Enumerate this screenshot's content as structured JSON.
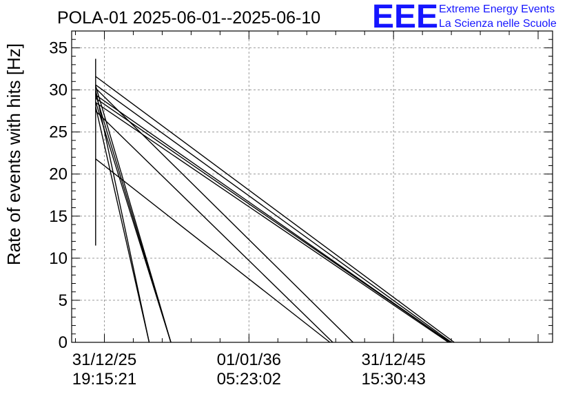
{
  "chart_data": {
    "type": "line",
    "title": "POLA-01 2025-06-01--2025-06-10",
    "ylabel": "Rate of events with hits [Hz]",
    "xlabel": "",
    "ylim": [
      0,
      37
    ],
    "yticks": [
      0,
      5,
      10,
      15,
      20,
      25,
      30,
      35
    ],
    "x_range": [
      -0.2263,
      3.1
    ],
    "xticks": [
      {
        "value": 0.0,
        "line1": "31/12/25",
        "line2": "19:15:21"
      },
      {
        "value": 1.0,
        "line1": "01/01/36",
        "line2": "05:23:02"
      },
      {
        "value": 2.0,
        "line1": "31/12/45",
        "line2": "15:30:43"
      }
    ],
    "grid": true,
    "spike": {
      "x": -0.0605,
      "y_min": 11.5,
      "y_max": 33.7
    },
    "series": [
      {
        "points": [
          [
            -0.0605,
            31.6
          ],
          [
            2.42,
            0
          ]
        ]
      },
      {
        "points": [
          [
            -0.0605,
            30.6
          ],
          [
            2.4,
            0
          ]
        ]
      },
      {
        "points": [
          [
            -0.0605,
            29.4
          ],
          [
            2.39,
            0
          ]
        ]
      },
      {
        "points": [
          [
            -0.0605,
            29.0
          ],
          [
            2.39,
            0
          ]
        ]
      },
      {
        "points": [
          [
            -0.0605,
            28.5
          ],
          [
            2.38,
            0
          ]
        ]
      },
      {
        "points": [
          [
            -0.0605,
            30.2
          ],
          [
            1.72,
            0
          ]
        ]
      },
      {
        "points": [
          [
            -0.0605,
            27.5
          ],
          [
            1.58,
            0
          ]
        ]
      },
      {
        "points": [
          [
            -0.0605,
            21.8
          ],
          [
            1.56,
            0
          ]
        ]
      },
      {
        "points": [
          [
            -0.0605,
            30.5
          ],
          [
            0.46,
            0
          ]
        ]
      },
      {
        "points": [
          [
            -0.0605,
            29.5
          ],
          [
            0.46,
            0
          ]
        ]
      },
      {
        "points": [
          [
            -0.0605,
            28.6
          ],
          [
            0.46,
            0
          ]
        ]
      },
      {
        "points": [
          [
            -0.0605,
            30.0
          ],
          [
            0.31,
            0
          ]
        ]
      },
      {
        "points": [
          [
            -0.0605,
            28.0
          ],
          [
            0.31,
            0
          ]
        ]
      }
    ]
  },
  "logo": {
    "mark": "EEE",
    "line1": "Extreme Energy Events",
    "line2": "La Scienza nelle Scuole",
    "color": "#1515ff"
  }
}
